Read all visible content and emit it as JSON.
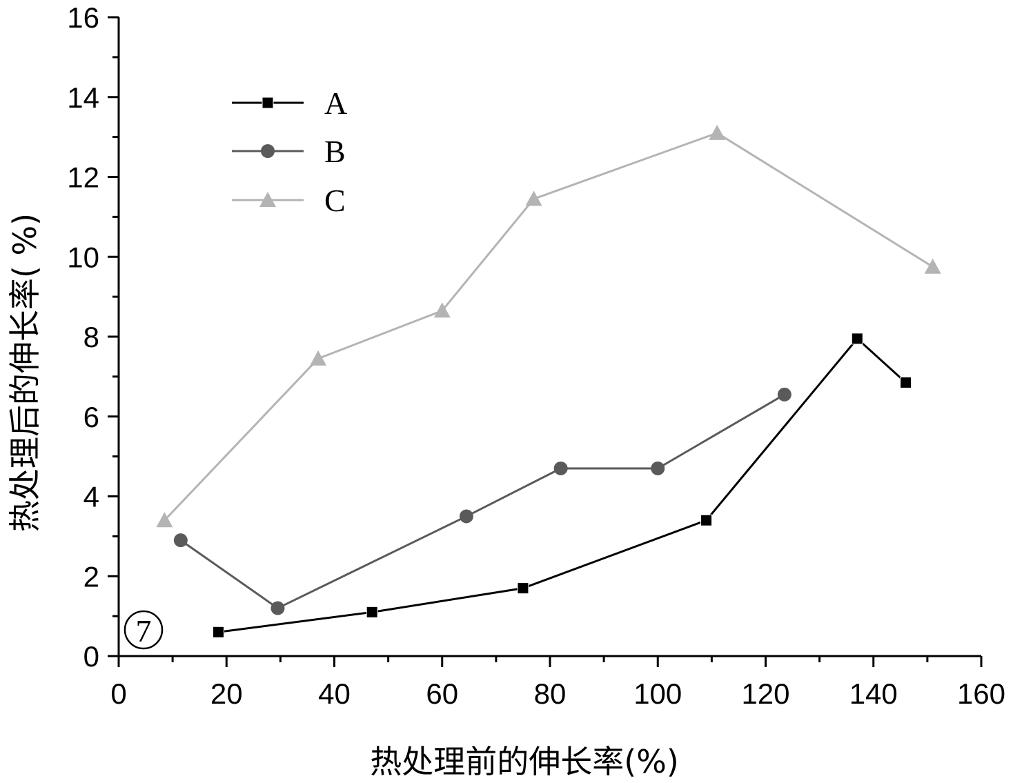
{
  "chart_data": {
    "type": "line",
    "xlabel": "热处理前的伸长率(%)",
    "ylabel": "热处理后的伸长率( %)",
    "xlim": [
      0,
      160
    ],
    "ylim": [
      0,
      16
    ],
    "xticks": [
      0,
      20,
      40,
      60,
      80,
      100,
      120,
      140,
      160
    ],
    "yticks": [
      0,
      2,
      4,
      6,
      8,
      10,
      12,
      14,
      16
    ],
    "grid": false,
    "legend_position": "top-left",
    "panel_label": "⑦",
    "series": [
      {
        "name": "A",
        "marker": "square",
        "color": "#000000",
        "x": [
          18.5,
          47,
          75,
          109,
          137,
          146
        ],
        "y": [
          0.6,
          1.1,
          1.7,
          3.4,
          7.95,
          6.85
        ]
      },
      {
        "name": "B",
        "marker": "circle",
        "color": "#5a5a5a",
        "x": [
          11.5,
          29.5,
          64.5,
          82,
          100,
          123.5
        ],
        "y": [
          2.9,
          1.2,
          3.5,
          4.7,
          4.7,
          6.55
        ]
      },
      {
        "name": "C",
        "marker": "triangle",
        "color": "#b4b4b4",
        "x": [
          8.5,
          37,
          60,
          77,
          111,
          151
        ],
        "y": [
          3.4,
          7.45,
          8.65,
          11.45,
          13.1,
          9.75
        ]
      }
    ]
  }
}
